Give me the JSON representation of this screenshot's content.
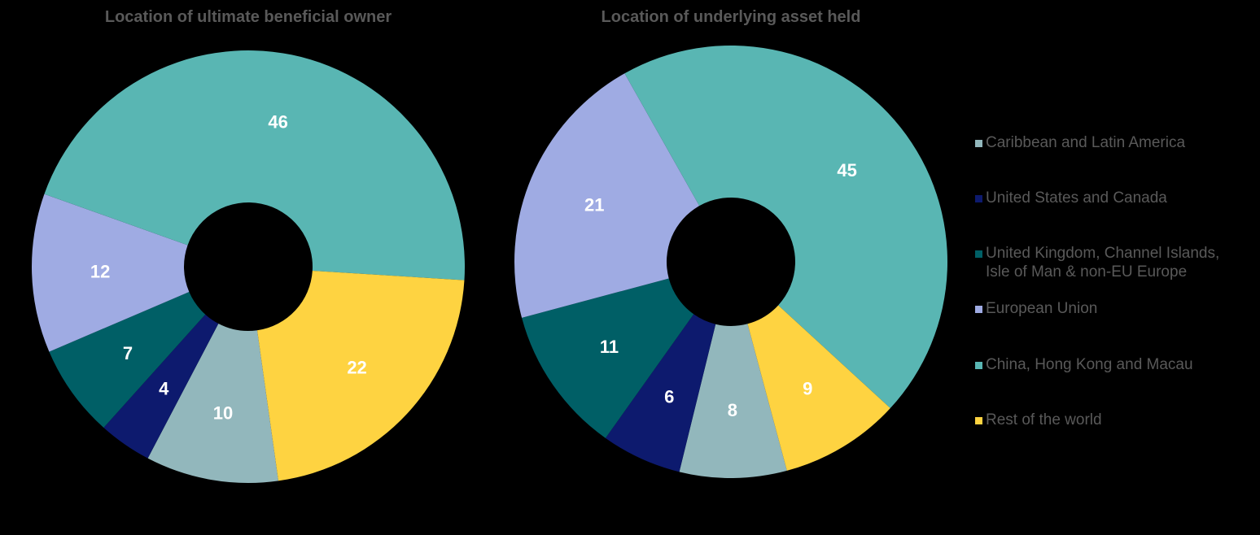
{
  "colors": {
    "caribbean": "#92b7bc",
    "us_canada": "#0d1a6e",
    "uk_europe": "#005f66",
    "eu": "#9fabe3",
    "china": "#59b6b3",
    "rest": "#fed341",
    "background": "#000000"
  },
  "legend": [
    {
      "label": "Caribbean and Latin America",
      "color": "#92b7bc"
    },
    {
      "label": "United States and Canada",
      "color": "#0d1a6e"
    },
    {
      "label": "United Kingdom, Channel Islands,\nIsle of Man & non-EU Europe",
      "color": "#005f66"
    },
    {
      "label": "European Union",
      "color": "#9fabe3"
    },
    {
      "label": "China, Hong Kong and Macau",
      "color": "#59b6b3"
    },
    {
      "label": "Rest of the world",
      "color": "#fed341"
    }
  ],
  "chart_data": [
    {
      "type": "pie",
      "donut": true,
      "title": "Location of ultimate beneficial owner",
      "categories": [
        "Caribbean and Latin America",
        "United States and Canada",
        "United Kingdom, Channel Islands, Isle of Man & non-EU Europe",
        "European Union",
        "China, Hong Kong and Macau",
        "Rest of the world"
      ],
      "values": [
        10,
        4,
        7,
        12,
        46,
        22
      ],
      "data_labels": [
        "10",
        "4",
        "7",
        "12",
        "46",
        "22"
      ]
    },
    {
      "type": "pie",
      "donut": true,
      "title": "Location of underlying asset held",
      "categories": [
        "Caribbean and Latin America",
        "United States and Canada",
        "United Kingdom, Channel Islands, Isle of Man & non-EU Europe",
        "European Union",
        "China, Hong Kong and Macau",
        "Rest of the world"
      ],
      "values": [
        8,
        6,
        11,
        21,
        45,
        9
      ],
      "data_labels": [
        "8",
        "6",
        "11",
        "21",
        "45",
        "9"
      ]
    }
  ]
}
